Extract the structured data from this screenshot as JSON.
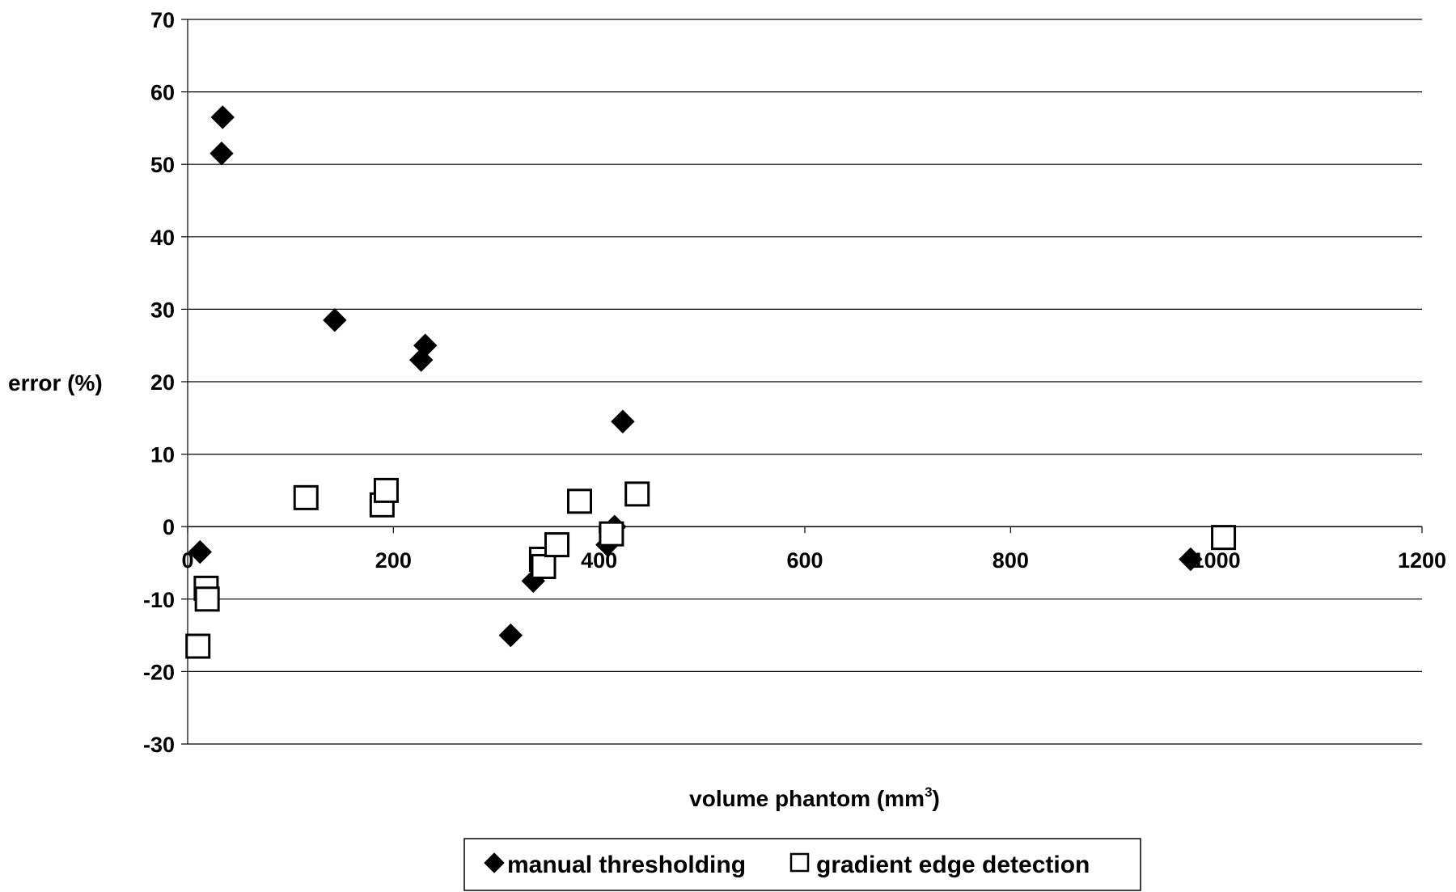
{
  "chart_data": {
    "type": "scatter",
    "title": "",
    "xlabel": "volume phantom (mm",
    "xlabel_superscript": "3",
    "xlabel_suffix": ")",
    "ylabel": "error (%)",
    "xlim": [
      0,
      1200
    ],
    "ylim": [
      -30,
      70
    ],
    "x_ticks": [
      0,
      200,
      400,
      600,
      800,
      1000,
      1200
    ],
    "y_ticks": [
      70,
      60,
      50,
      40,
      30,
      20,
      10,
      0,
      -10,
      -20,
      -30
    ],
    "grid": "horizontal",
    "legend_position": "bottom-center",
    "series": [
      {
        "name": "manual thresholding",
        "marker": "filled-diamond",
        "color": "#000000",
        "points": [
          {
            "x": 12,
            "y": -3.5
          },
          {
            "x": 33,
            "y": 51.5
          },
          {
            "x": 34,
            "y": 56.5
          },
          {
            "x": 143,
            "y": 28.5
          },
          {
            "x": 227,
            "y": 23
          },
          {
            "x": 231,
            "y": 25
          },
          {
            "x": 314,
            "y": -15
          },
          {
            "x": 336,
            "y": -7.5
          },
          {
            "x": 408,
            "y": -2.5
          },
          {
            "x": 415,
            "y": 0
          },
          {
            "x": 423,
            "y": 14.5
          },
          {
            "x": 975,
            "y": -4.5
          }
        ]
      },
      {
        "name": "gradient edge detection",
        "marker": "open-square",
        "color": "#000000",
        "points": [
          {
            "x": 10,
            "y": -16.5
          },
          {
            "x": 18,
            "y": -8.5
          },
          {
            "x": 19,
            "y": -10
          },
          {
            "x": 115,
            "y": 4
          },
          {
            "x": 189,
            "y": 3
          },
          {
            "x": 193,
            "y": 5
          },
          {
            "x": 344,
            "y": -4.5
          },
          {
            "x": 346,
            "y": -5.5
          },
          {
            "x": 359,
            "y": -2.5
          },
          {
            "x": 381,
            "y": 3.5
          },
          {
            "x": 412,
            "y": -1
          },
          {
            "x": 437,
            "y": 4.5
          },
          {
            "x": 1007,
            "y": -1.5
          }
        ]
      }
    ]
  }
}
